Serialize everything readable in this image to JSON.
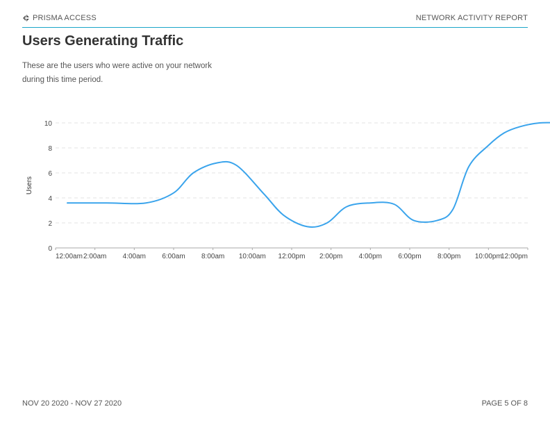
{
  "header": {
    "brand": "PRISMA ACCESS",
    "brand_icon": "prisma-logo-icon",
    "report_title": "NETWORK ACTIVITY REPORT",
    "accent_color": "#1ba6c9"
  },
  "page": {
    "title": "Users Generating Traffic",
    "description_line1": "These are the users who were active on your network",
    "description_line2": "during this time period."
  },
  "chart_data": {
    "type": "line",
    "ylabel": "Users",
    "xlabel": "",
    "ylim": [
      0,
      10
    ],
    "y_ticks": [
      0,
      2,
      4,
      6,
      8,
      10
    ],
    "grid": true,
    "line_color": "#3aa4ec",
    "x_tick_labels": [
      "12:00am",
      "2:00am",
      "4:00am",
      "6:00am",
      "8:00am",
      "10:00am",
      "12:00pm",
      "2:00pm",
      "4:00pm",
      "6:00pm",
      "8:00pm",
      "10:00pm",
      "12:00pm"
    ],
    "series": [
      {
        "x": [
          0.3,
          1.3,
          2.3,
          3.0,
          3.5,
          4.1,
          4.6,
          5.3,
          5.8,
          6.4,
          6.9,
          7.4,
          8.0,
          8.6,
          9.1,
          9.7,
          10.1,
          10.5,
          11.0,
          11.4,
          11.8,
          12.3,
          12.8
        ],
        "y": [
          3.6,
          3.6,
          3.6,
          4.4,
          6.0,
          6.8,
          6.6,
          4.3,
          2.6,
          1.7,
          2.0,
          3.3,
          3.6,
          3.5,
          2.2,
          2.2,
          3.1,
          6.5,
          8.2,
          9.2,
          9.7,
          10.0,
          10.0
        ]
      }
    ]
  },
  "footer": {
    "date_range": "NOV 20 2020 - NOV 27 2020",
    "page_number": "PAGE 5 OF 8"
  }
}
